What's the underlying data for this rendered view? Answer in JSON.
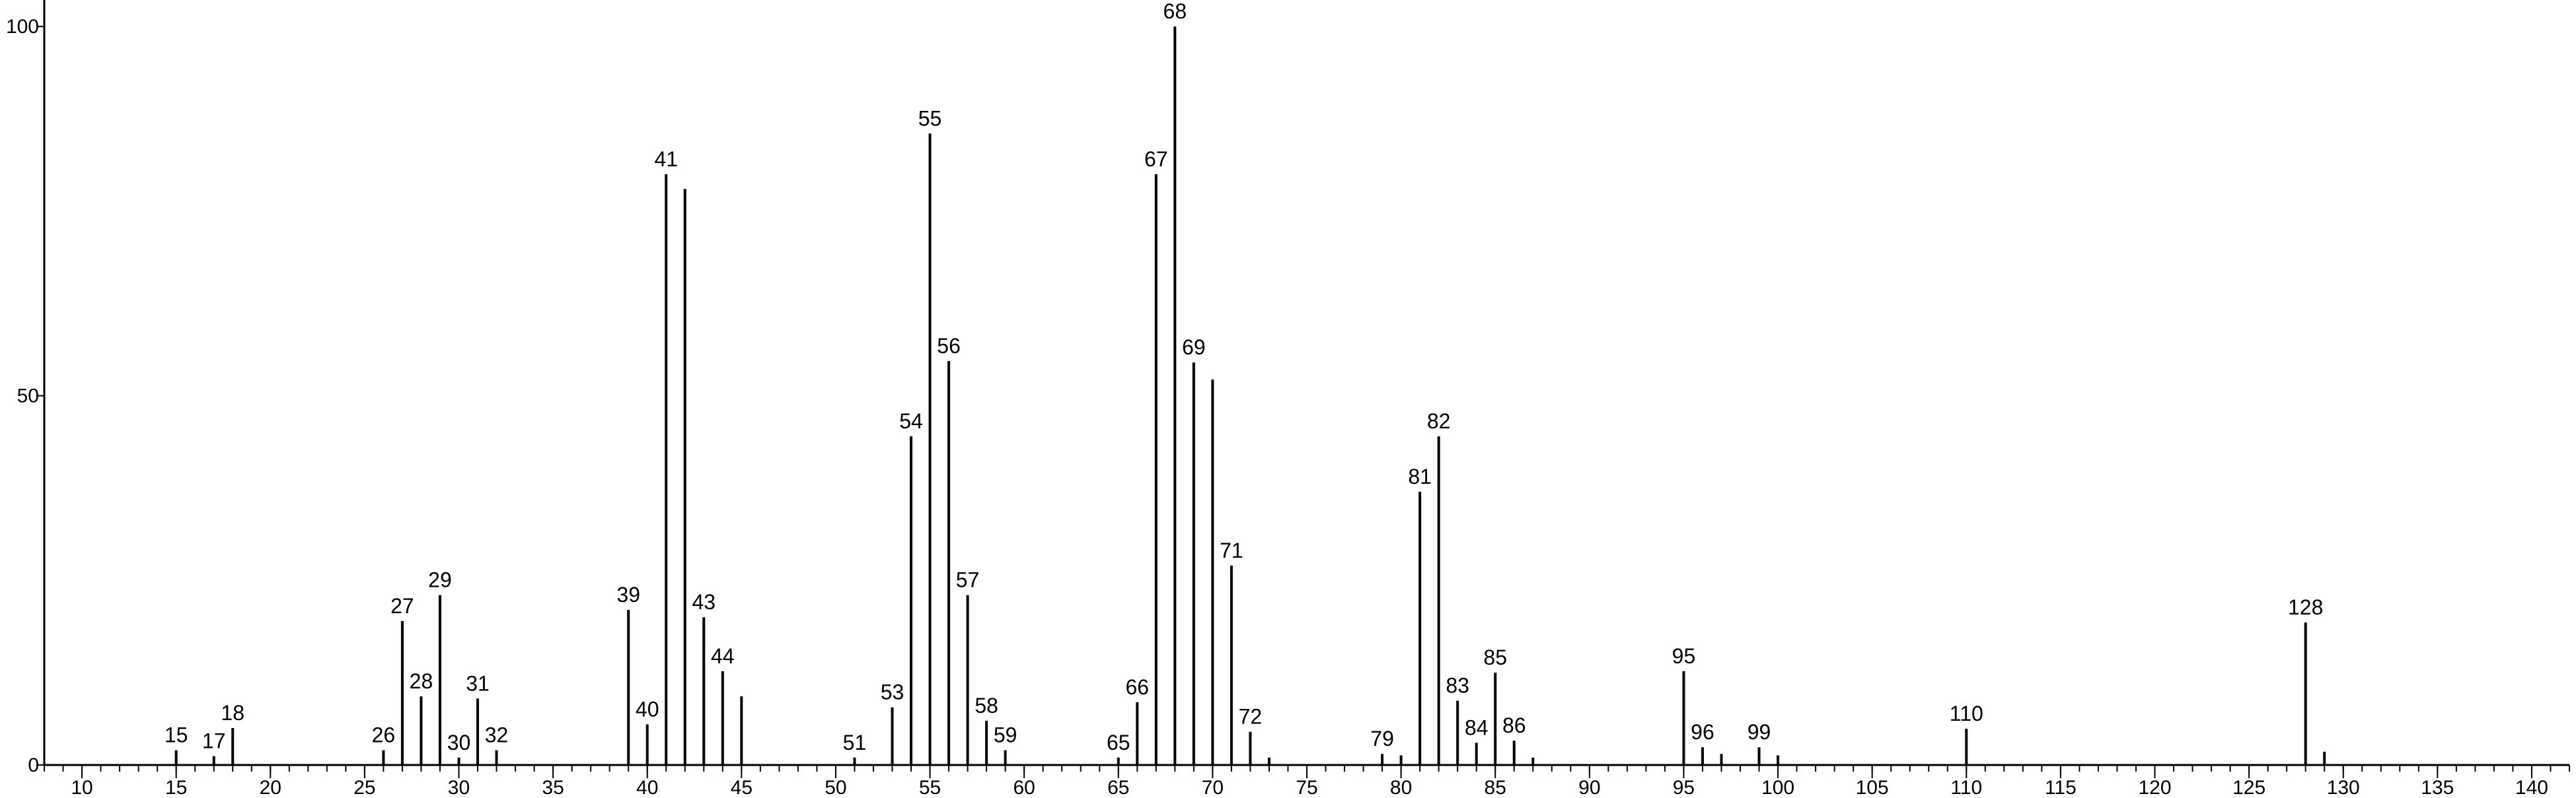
{
  "chart_data": {
    "type": "spectrum",
    "x": [
      15,
      17,
      18,
      26,
      27,
      28,
      29,
      30,
      31,
      32,
      39,
      40,
      41,
      42,
      43,
      44,
      45,
      51,
      53,
      54,
      55,
      56,
      57,
      58,
      59,
      65,
      66,
      67,
      68,
      69,
      70,
      71,
      72,
      73,
      79,
      80,
      81,
      82,
      83,
      84,
      85,
      86,
      87,
      95,
      96,
      97,
      99,
      100,
      110,
      128,
      129
    ],
    "values": [
      2,
      1.2,
      5,
      2,
      19.5,
      9.3,
      23,
      1,
      9,
      2,
      21,
      5.5,
      80,
      78,
      20,
      12.7,
      9.3,
      1,
      7.8,
      44.5,
      85.5,
      54.7,
      23,
      6,
      2,
      1,
      8.5,
      80,
      100,
      54.5,
      52.2,
      27,
      4.5,
      1,
      1.5,
      1.3,
      37,
      44.5,
      8.7,
      3,
      12.5,
      3.3,
      1,
      12.7,
      2.4,
      1.5,
      2.4,
      1.3,
      4.9,
      19.3,
      1.8
    ],
    "point_labels": [
      "15",
      "17",
      "18",
      "26",
      "27",
      "28",
      "29",
      "30",
      "31",
      "32",
      "39",
      "40",
      "41",
      null,
      "43",
      "44",
      null,
      "51",
      "53",
      "54",
      "55",
      "56",
      "57",
      "58",
      "59",
      "65",
      "66",
      "67",
      "68",
      "69",
      null,
      "71",
      "72",
      null,
      "79",
      null,
      "81",
      "82",
      "83",
      "84",
      "85",
      "86",
      null,
      "95",
      "96",
      null,
      "99",
      null,
      "110",
      "128",
      null
    ],
    "color": "#000000",
    "xlim": [
      8,
      142
    ],
    "ylim": [
      0,
      103.5
    ],
    "xticks": [
      10,
      15,
      20,
      25,
      30,
      35,
      40,
      45,
      50,
      55,
      60,
      65,
      70,
      75,
      80,
      85,
      90,
      95,
      100,
      105,
      110,
      115,
      120,
      125,
      130,
      135,
      140
    ],
    "minor_xtick_step": 1,
    "yticks": [
      0,
      50,
      100
    ]
  }
}
